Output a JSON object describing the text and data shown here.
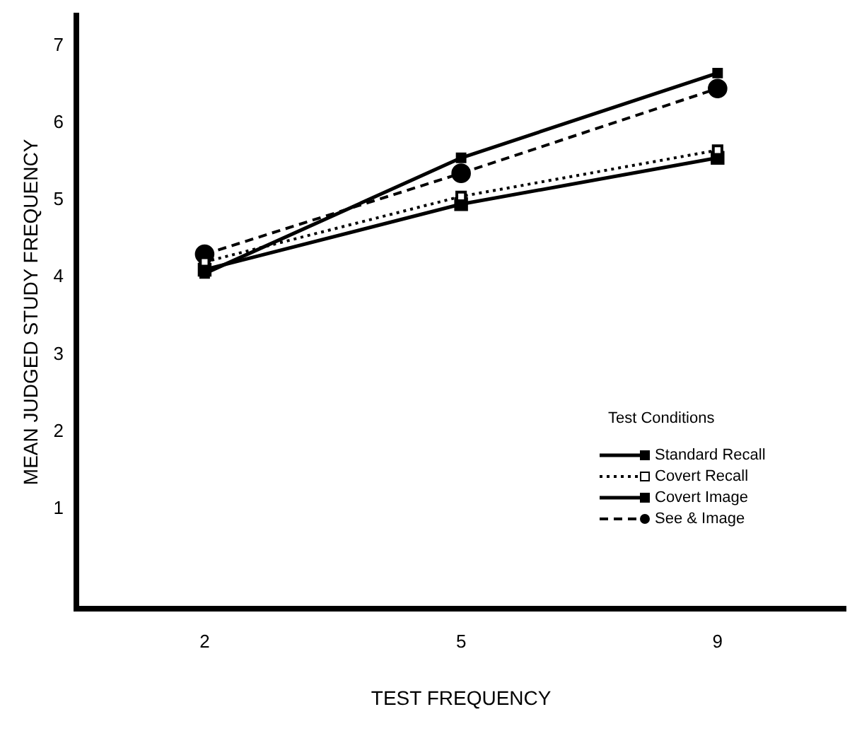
{
  "chart_data": {
    "type": "line",
    "xlabel": "TEST FREQUENCY",
    "ylabel": "MEAN JUDGED STUDY FREQUENCY",
    "legend_title": "Test Conditions",
    "legend": "bottom right",
    "categories": [
      "2",
      "5",
      "9"
    ],
    "ylim": [
      -0.3,
      7.4
    ],
    "yticks": [
      1,
      2,
      3,
      4,
      5,
      6,
      7
    ],
    "grid": false,
    "series": [
      {
        "name": "Standard Recall",
        "color": "#000000",
        "marker": "square",
        "line_style": "solid",
        "values": [
          4.05,
          5.55,
          6.65
        ]
      },
      {
        "name": "Covert Recall",
        "color": "#000000",
        "marker": "square",
        "line_style": "dotted",
        "values": [
          4.2,
          5.05,
          5.65
        ]
      },
      {
        "name": "Covert Image",
        "color": "#000000",
        "marker": "square",
        "line_style": "solid",
        "values": [
          4.1,
          4.95,
          5.55
        ]
      },
      {
        "name": "See & Image",
        "color": "#000000",
        "marker": "circle",
        "line_style": "dashed",
        "values": [
          4.3,
          5.35,
          6.45
        ]
      }
    ]
  }
}
